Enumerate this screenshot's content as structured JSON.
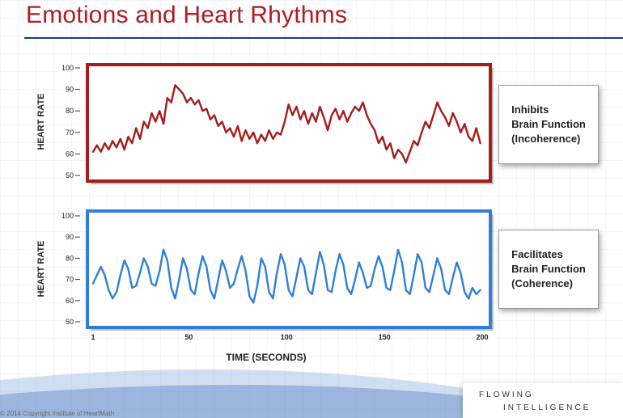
{
  "slide": {
    "title": "Emotions and Heart Rhythms",
    "footer_copyright": "© 2014 Copyright Institute of HeartMath",
    "logo_line1": "FLOWING",
    "logo_line2": "INTELLIGENCE",
    "colors": {
      "title": "#b01c22",
      "rule": "#1a3f7a",
      "incoherent_frame": "#a51c1c",
      "incoherent_line": "#a51c1c",
      "coherent_frame": "#2f7fd9",
      "coherent_line": "#2f7fd9"
    }
  },
  "boxes": {
    "incoherence": [
      "Inhibits",
      "Brain Function",
      "(Incoherence)"
    ],
    "coherence": [
      "Facilitates",
      "Brain Function",
      "(Coherence)"
    ]
  },
  "chart_data": [
    {
      "type": "line",
      "ylabel": "HEART RATE",
      "ylim": [
        50,
        100
      ],
      "yticks": [
        "100",
        "90",
        "80",
        "70",
        "60",
        "50"
      ],
      "xlim": [
        1,
        200
      ],
      "grid": false,
      "series": [
        {
          "values": [
            [
              1,
              61
            ],
            [
              3,
              64
            ],
            [
              5,
              61
            ],
            [
              7,
              65
            ],
            [
              9,
              62
            ],
            [
              11,
              66
            ],
            [
              13,
              63
            ],
            [
              15,
              67
            ],
            [
              17,
              62
            ],
            [
              19,
              68
            ],
            [
              21,
              65
            ],
            [
              23,
              72
            ],
            [
              25,
              67
            ],
            [
              27,
              75
            ],
            [
              29,
              72
            ],
            [
              31,
              79
            ],
            [
              33,
              75
            ],
            [
              35,
              80
            ],
            [
              37,
              74
            ],
            [
              39,
              86
            ],
            [
              41,
              84
            ],
            [
              43,
              92
            ],
            [
              45,
              90
            ],
            [
              47,
              88
            ],
            [
              49,
              84
            ],
            [
              51,
              86
            ],
            [
              53,
              83
            ],
            [
              55,
              85
            ],
            [
              57,
              80
            ],
            [
              59,
              81
            ],
            [
              61,
              76
            ],
            [
              63,
              78
            ],
            [
              65,
              73
            ],
            [
              67,
              75
            ],
            [
              69,
              70
            ],
            [
              71,
              72
            ],
            [
              73,
              68
            ],
            [
              75,
              73
            ],
            [
              77,
              66
            ],
            [
              79,
              71
            ],
            [
              81,
              67
            ],
            [
              83,
              70
            ],
            [
              85,
              65
            ],
            [
              87,
              69
            ],
            [
              89,
              66
            ],
            [
              91,
              71
            ],
            [
              93,
              67
            ],
            [
              95,
              70
            ],
            [
              97,
              69
            ],
            [
              99,
              75
            ],
            [
              101,
              83
            ],
            [
              103,
              78
            ],
            [
              105,
              82
            ],
            [
              107,
              76
            ],
            [
              109,
              80
            ],
            [
              111,
              74
            ],
            [
              113,
              79
            ],
            [
              115,
              75
            ],
            [
              117,
              82
            ],
            [
              119,
              77
            ],
            [
              121,
              71
            ],
            [
              123,
              78
            ],
            [
              125,
              81
            ],
            [
              127,
              76
            ],
            [
              129,
              80
            ],
            [
              131,
              75
            ],
            [
              133,
              79
            ],
            [
              135,
              82
            ],
            [
              137,
              80
            ],
            [
              139,
              84
            ],
            [
              141,
              78
            ],
            [
              143,
              74
            ],
            [
              145,
              71
            ],
            [
              147,
              65
            ],
            [
              149,
              68
            ],
            [
              151,
              62
            ],
            [
              153,
              65
            ],
            [
              155,
              58
            ],
            [
              157,
              62
            ],
            [
              159,
              60
            ],
            [
              161,
              56
            ],
            [
              163,
              61
            ],
            [
              165,
              66
            ],
            [
              167,
              64
            ],
            [
              169,
              70
            ],
            [
              171,
              75
            ],
            [
              173,
              72
            ],
            [
              175,
              78
            ],
            [
              177,
              84
            ],
            [
              179,
              80
            ],
            [
              181,
              77
            ],
            [
              183,
              73
            ],
            [
              185,
              79
            ],
            [
              187,
              75
            ],
            [
              189,
              70
            ],
            [
              191,
              74
            ],
            [
              193,
              68
            ],
            [
              195,
              66
            ],
            [
              197,
              72
            ],
            [
              199,
              65
            ]
          ]
        }
      ]
    },
    {
      "type": "line",
      "xlabel": "TIME (SECONDS)",
      "ylabel": "HEART RATE",
      "ylim": [
        50,
        100
      ],
      "yticks": [
        "100",
        "90",
        "80",
        "70",
        "60",
        "50"
      ],
      "xlim": [
        1,
        200
      ],
      "xticks": [
        "1",
        "50",
        "100",
        "150",
        "200"
      ],
      "grid": false,
      "series": [
        {
          "values": [
            [
              1,
              68
            ],
            [
              3,
              72
            ],
            [
              5,
              76
            ],
            [
              7,
              72
            ],
            [
              9,
              65
            ],
            [
              11,
              61
            ],
            [
              13,
              64
            ],
            [
              15,
              72
            ],
            [
              17,
              79
            ],
            [
              19,
              75
            ],
            [
              21,
              66
            ],
            [
              23,
              67
            ],
            [
              25,
              73
            ],
            [
              27,
              80
            ],
            [
              29,
              76
            ],
            [
              31,
              68
            ],
            [
              33,
              67
            ],
            [
              35,
              74
            ],
            [
              37,
              84
            ],
            [
              39,
              79
            ],
            [
              41,
              66
            ],
            [
              43,
              61
            ],
            [
              45,
              70
            ],
            [
              47,
              80
            ],
            [
              49,
              75
            ],
            [
              51,
              65
            ],
            [
              53,
              63
            ],
            [
              55,
              73
            ],
            [
              57,
              81
            ],
            [
              59,
              76
            ],
            [
              61,
              65
            ],
            [
              63,
              61
            ],
            [
              65,
              70
            ],
            [
              67,
              79
            ],
            [
              69,
              74
            ],
            [
              71,
              66
            ],
            [
              73,
              68
            ],
            [
              75,
              75
            ],
            [
              77,
              81
            ],
            [
              79,
              74
            ],
            [
              81,
              62
            ],
            [
              83,
              59
            ],
            [
              85,
              67
            ],
            [
              87,
              80
            ],
            [
              89,
              76
            ],
            [
              91,
              64
            ],
            [
              93,
              61
            ],
            [
              95,
              73
            ],
            [
              97,
              82
            ],
            [
              99,
              77
            ],
            [
              101,
              65
            ],
            [
              103,
              62
            ],
            [
              105,
              71
            ],
            [
              107,
              80
            ],
            [
              109,
              76
            ],
            [
              111,
              65
            ],
            [
              113,
              63
            ],
            [
              115,
              73
            ],
            [
              117,
              83
            ],
            [
              119,
              77
            ],
            [
              121,
              65
            ],
            [
              123,
              64
            ],
            [
              125,
              74
            ],
            [
              127,
              82
            ],
            [
              129,
              77
            ],
            [
              131,
              66
            ],
            [
              133,
              63
            ],
            [
              135,
              70
            ],
            [
              137,
              78
            ],
            [
              139,
              73
            ],
            [
              141,
              66
            ],
            [
              143,
              67
            ],
            [
              145,
              75
            ],
            [
              147,
              81
            ],
            [
              149,
              76
            ],
            [
              151,
              66
            ],
            [
              153,
              65
            ],
            [
              155,
              74
            ],
            [
              157,
              84
            ],
            [
              159,
              78
            ],
            [
              161,
              65
            ],
            [
              163,
              63
            ],
            [
              165,
              72
            ],
            [
              167,
              82
            ],
            [
              169,
              78
            ],
            [
              171,
              66
            ],
            [
              173,
              64
            ],
            [
              175,
              72
            ],
            [
              177,
              80
            ],
            [
              179,
              75
            ],
            [
              181,
              65
            ],
            [
              183,
              63
            ],
            [
              185,
              71
            ],
            [
              187,
              78
            ],
            [
              189,
              73
            ],
            [
              191,
              64
            ],
            [
              193,
              61
            ],
            [
              195,
              66
            ],
            [
              197,
              63
            ],
            [
              199,
              65
            ]
          ]
        }
      ]
    }
  ]
}
